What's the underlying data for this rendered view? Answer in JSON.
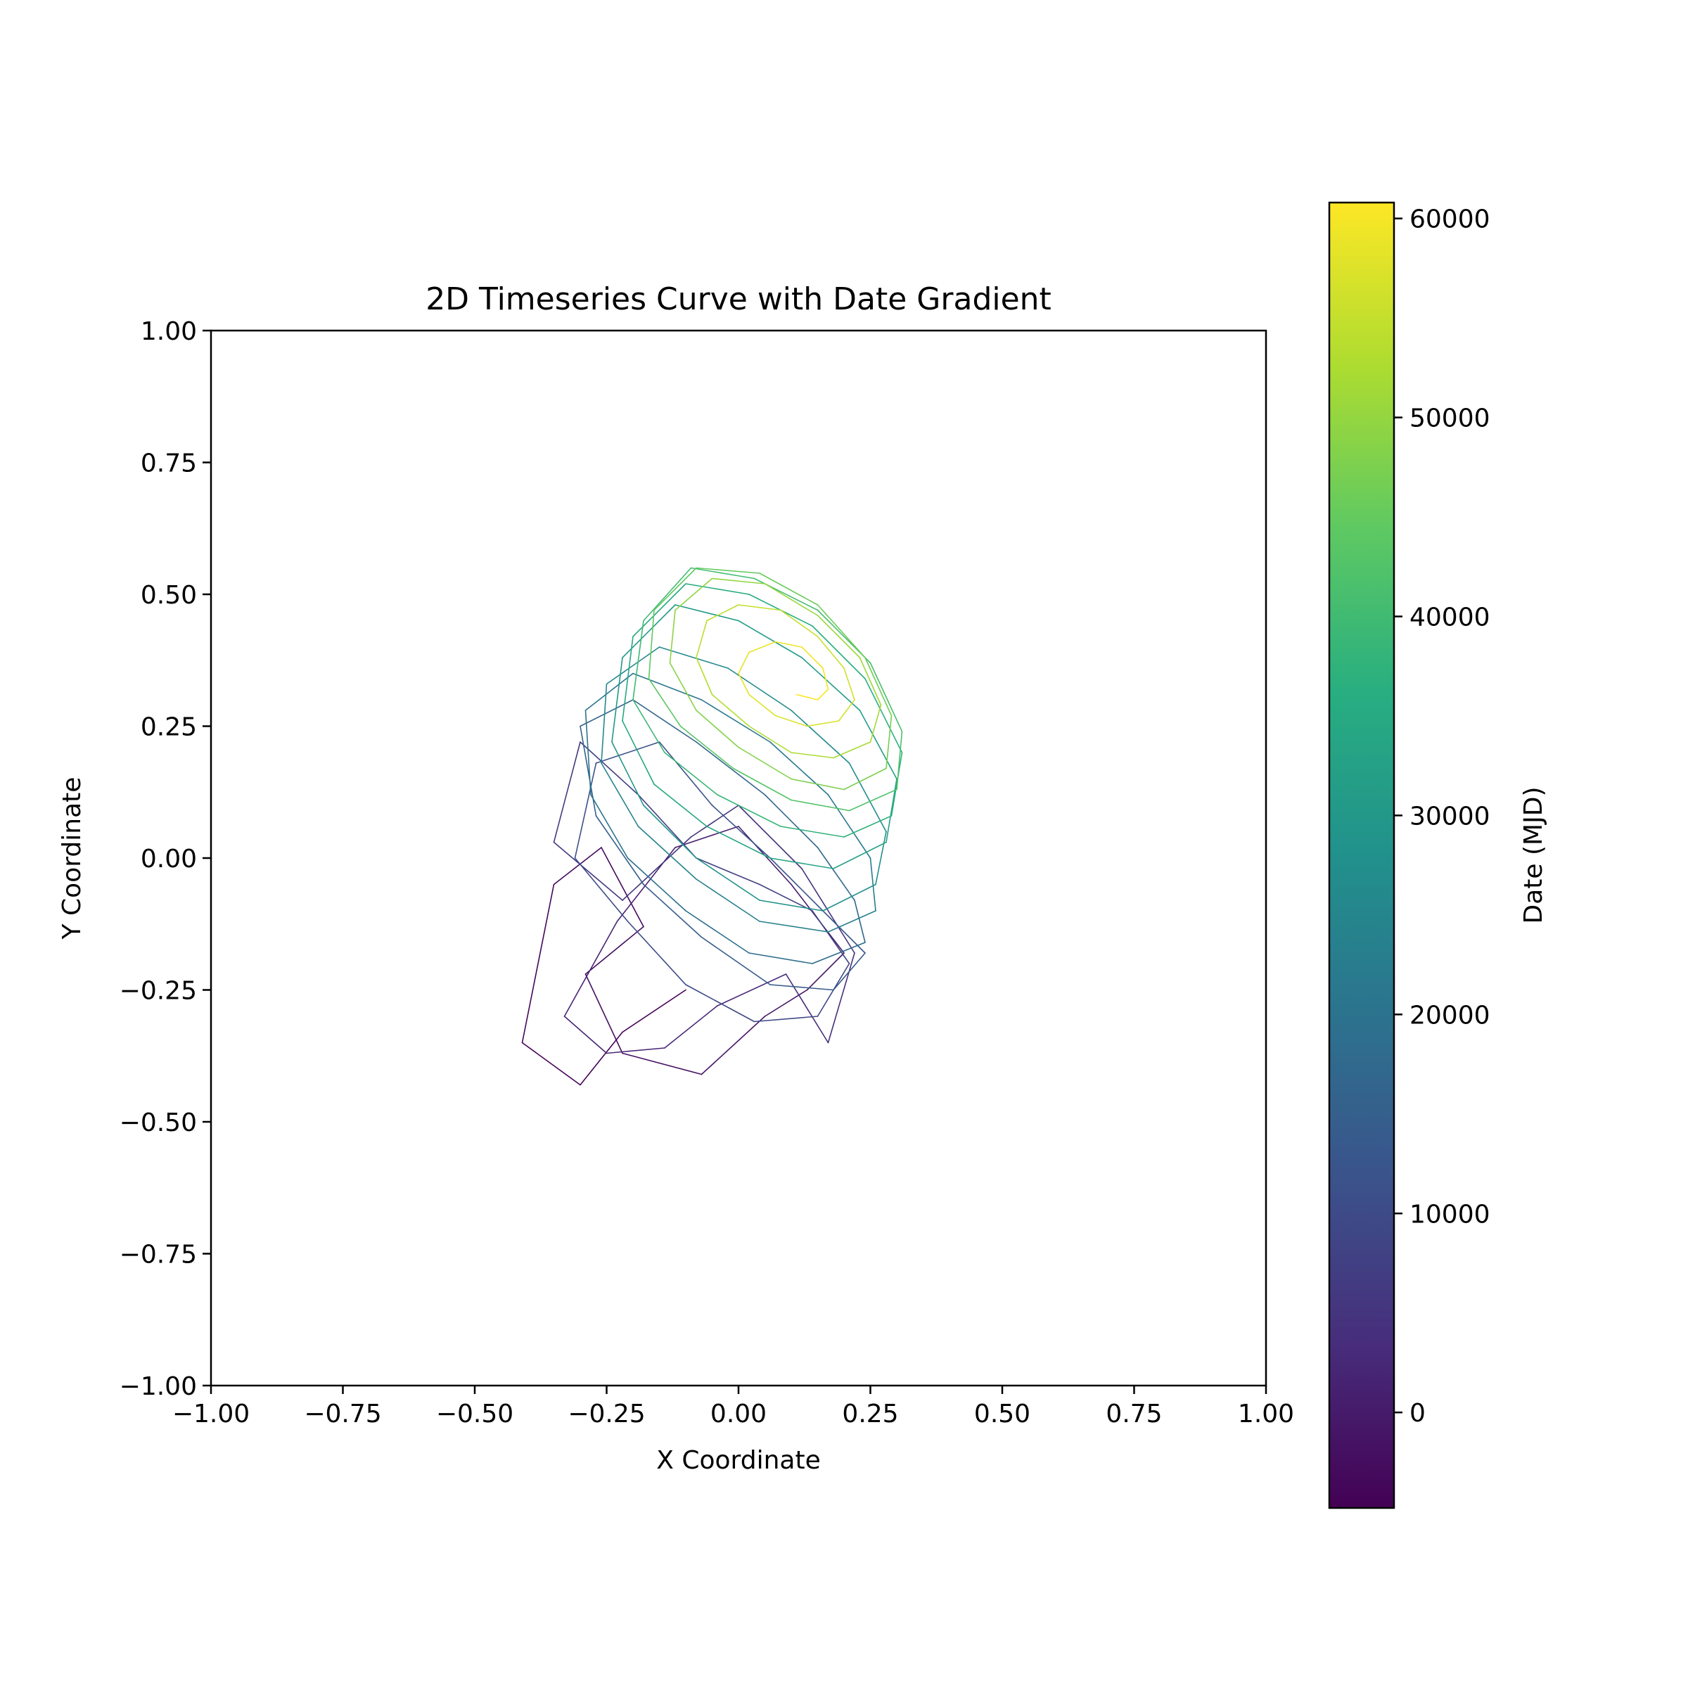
{
  "chart_data": {
    "type": "line",
    "title": "2D Timeseries Curve with Date Gradient",
    "xlabel": "X Coordinate",
    "ylabel": "Y Coordinate",
    "xlim": [
      -1.0,
      1.0
    ],
    "ylim": [
      -1.0,
      1.0
    ],
    "x_ticks": [
      "−1.00",
      "−0.75",
      "−0.50",
      "−0.25",
      "0.00",
      "0.25",
      "0.50",
      "0.75",
      "1.00"
    ],
    "y_ticks": [
      "−1.00",
      "−0.75",
      "−0.50",
      "−0.25",
      "0.00",
      "0.25",
      "0.50",
      "0.75",
      "1.00"
    ],
    "grid": false,
    "colormap": "viridis",
    "colorbar": {
      "label": "Date (MJD)",
      "range": [
        -4800,
        60800
      ],
      "ticks": [
        "0",
        "10000",
        "20000",
        "30000",
        "40000",
        "50000",
        "60000"
      ]
    },
    "series": [
      {
        "date_start": -4800,
        "date_end": 60800,
        "x": [
          -0.1,
          -0.22,
          -0.3,
          -0.41,
          -0.35,
          -0.26,
          -0.18,
          -0.29,
          -0.22,
          -0.07,
          0.05,
          0.13,
          0.2,
          0.1,
          0.0,
          -0.12,
          -0.23,
          -0.33,
          -0.25,
          -0.14,
          -0.04,
          0.09,
          0.17,
          0.22,
          0.12,
          0.0,
          -0.09,
          -0.22,
          -0.35,
          -0.3,
          -0.19,
          -0.08,
          0.04,
          0.14,
          0.21,
          0.15,
          0.03,
          -0.1,
          -0.21,
          -0.31,
          -0.27,
          -0.15,
          -0.05,
          0.06,
          0.16,
          0.24,
          0.18,
          0.06,
          -0.07,
          -0.18,
          -0.27,
          -0.3,
          -0.2,
          -0.08,
          0.05,
          0.15,
          0.22,
          0.24,
          0.14,
          0.02,
          -0.1,
          -0.21,
          -0.28,
          -0.29,
          -0.2,
          -0.07,
          0.06,
          0.17,
          0.25,
          0.26,
          0.17,
          0.04,
          -0.08,
          -0.19,
          -0.26,
          -0.25,
          -0.15,
          -0.02,
          0.1,
          0.21,
          0.28,
          0.26,
          0.16,
          0.04,
          -0.08,
          -0.18,
          -0.24,
          -0.22,
          -0.12,
          0.0,
          0.12,
          0.23,
          0.3,
          0.28,
          0.18,
          0.06,
          -0.06,
          -0.16,
          -0.22,
          -0.2,
          -0.1,
          0.02,
          0.14,
          0.24,
          0.31,
          0.29,
          0.2,
          0.08,
          -0.04,
          -0.14,
          -0.2,
          -0.18,
          -0.09,
          0.03,
          0.15,
          0.25,
          0.31,
          0.3,
          0.21,
          0.1,
          -0.01,
          -0.11,
          -0.17,
          -0.16,
          -0.08,
          0.04,
          0.15,
          0.24,
          0.29,
          0.28,
          0.2,
          0.1,
          0.0,
          -0.08,
          -0.13,
          -0.12,
          -0.05,
          0.05,
          0.15,
          0.23,
          0.27,
          0.25,
          0.18,
          0.1,
          0.02,
          -0.05,
          -0.08,
          -0.06,
          0.0,
          0.08,
          0.15,
          0.2,
          0.22,
          0.19,
          0.13,
          0.07,
          0.02,
          0.0,
          0.02,
          0.07,
          0.12,
          0.16,
          0.17,
          0.15,
          0.11
        ],
        "y": [
          -0.25,
          -0.33,
          -0.43,
          -0.35,
          -0.05,
          0.02,
          -0.13,
          -0.22,
          -0.37,
          -0.41,
          -0.3,
          -0.25,
          -0.18,
          -0.05,
          0.06,
          0.02,
          -0.12,
          -0.3,
          -0.37,
          -0.36,
          -0.28,
          -0.22,
          -0.35,
          -0.18,
          -0.02,
          0.1,
          0.04,
          -0.08,
          0.03,
          0.22,
          0.12,
          0.0,
          -0.05,
          -0.1,
          -0.2,
          -0.3,
          -0.31,
          -0.24,
          -0.12,
          0.0,
          0.18,
          0.22,
          0.1,
          0.0,
          -0.1,
          -0.18,
          -0.25,
          -0.24,
          -0.15,
          -0.05,
          0.08,
          0.25,
          0.3,
          0.22,
          0.12,
          0.02,
          -0.08,
          -0.16,
          -0.2,
          -0.18,
          -0.1,
          0.0,
          0.12,
          0.28,
          0.35,
          0.3,
          0.22,
          0.12,
          0.0,
          -0.1,
          -0.14,
          -0.12,
          -0.04,
          0.06,
          0.18,
          0.33,
          0.4,
          0.36,
          0.28,
          0.18,
          0.05,
          -0.05,
          -0.1,
          -0.08,
          0.0,
          0.1,
          0.22,
          0.38,
          0.48,
          0.45,
          0.38,
          0.28,
          0.15,
          0.03,
          -0.02,
          0.0,
          0.06,
          0.14,
          0.26,
          0.42,
          0.52,
          0.5,
          0.44,
          0.34,
          0.2,
          0.08,
          0.04,
          0.06,
          0.12,
          0.2,
          0.3,
          0.45,
          0.55,
          0.53,
          0.47,
          0.37,
          0.24,
          0.13,
          0.09,
          0.11,
          0.17,
          0.25,
          0.34,
          0.47,
          0.55,
          0.54,
          0.48,
          0.38,
          0.27,
          0.17,
          0.13,
          0.15,
          0.21,
          0.28,
          0.37,
          0.47,
          0.53,
          0.52,
          0.46,
          0.38,
          0.29,
          0.22,
          0.19,
          0.2,
          0.25,
          0.31,
          0.38,
          0.45,
          0.48,
          0.47,
          0.42,
          0.36,
          0.3,
          0.26,
          0.25,
          0.27,
          0.31,
          0.35,
          0.39,
          0.41,
          0.4,
          0.36,
          0.32,
          0.3,
          0.31
        ]
      }
    ]
  }
}
